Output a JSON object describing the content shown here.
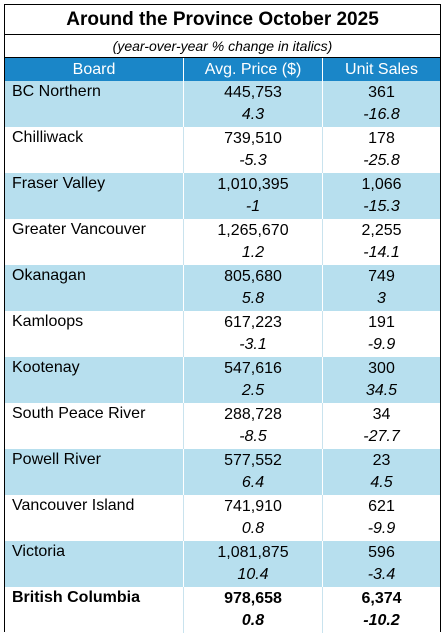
{
  "title": "Around the Province October 2025",
  "subtitle": "(year-over-year % change in italics)",
  "colors": {
    "header_bg": "#1a86c8",
    "band_bg": "#b7dfee"
  },
  "chart_data": {
    "type": "table",
    "columns": [
      "Board",
      "Avg. Price ($)",
      "Unit Sales"
    ],
    "rows": [
      {
        "board": "BC Northern",
        "price": "445,753",
        "price_change": "4.3",
        "sales": "361",
        "sales_change": "-16.8"
      },
      {
        "board": "Chilliwack",
        "price": "739,510",
        "price_change": "-5.3",
        "sales": "178",
        "sales_change": "-25.8"
      },
      {
        "board": "Fraser Valley",
        "price": "1,010,395",
        "price_change": "-1",
        "sales": "1,066",
        "sales_change": "-15.3"
      },
      {
        "board": "Greater Vancouver",
        "price": "1,265,670",
        "price_change": "1.2",
        "sales": "2,255",
        "sales_change": "-14.1"
      },
      {
        "board": "Okanagan",
        "price": "805,680",
        "price_change": "5.8",
        "sales": "749",
        "sales_change": "3"
      },
      {
        "board": "Kamloops",
        "price": "617,223",
        "price_change": "-3.1",
        "sales": "191",
        "sales_change": "-9.9"
      },
      {
        "board": "Kootenay",
        "price": "547,616",
        "price_change": "2.5",
        "sales": "300",
        "sales_change": "34.5"
      },
      {
        "board": "South Peace River",
        "price": "288,728",
        "price_change": "-8.5",
        "sales": "34",
        "sales_change": "-27.7"
      },
      {
        "board": "Powell River",
        "price": "577,552",
        "price_change": "6.4",
        "sales": "23",
        "sales_change": "4.5"
      },
      {
        "board": "Vancouver Island",
        "price": "741,910",
        "price_change": "0.8",
        "sales": "621",
        "sales_change": "-9.9"
      },
      {
        "board": "Victoria",
        "price": "1,081,875",
        "price_change": "10.4",
        "sales": "596",
        "sales_change": "-3.4"
      },
      {
        "board": "British Columbia",
        "price": "978,658",
        "price_change": "0.8",
        "sales": "6,374",
        "sales_change": "-10.2"
      }
    ]
  }
}
